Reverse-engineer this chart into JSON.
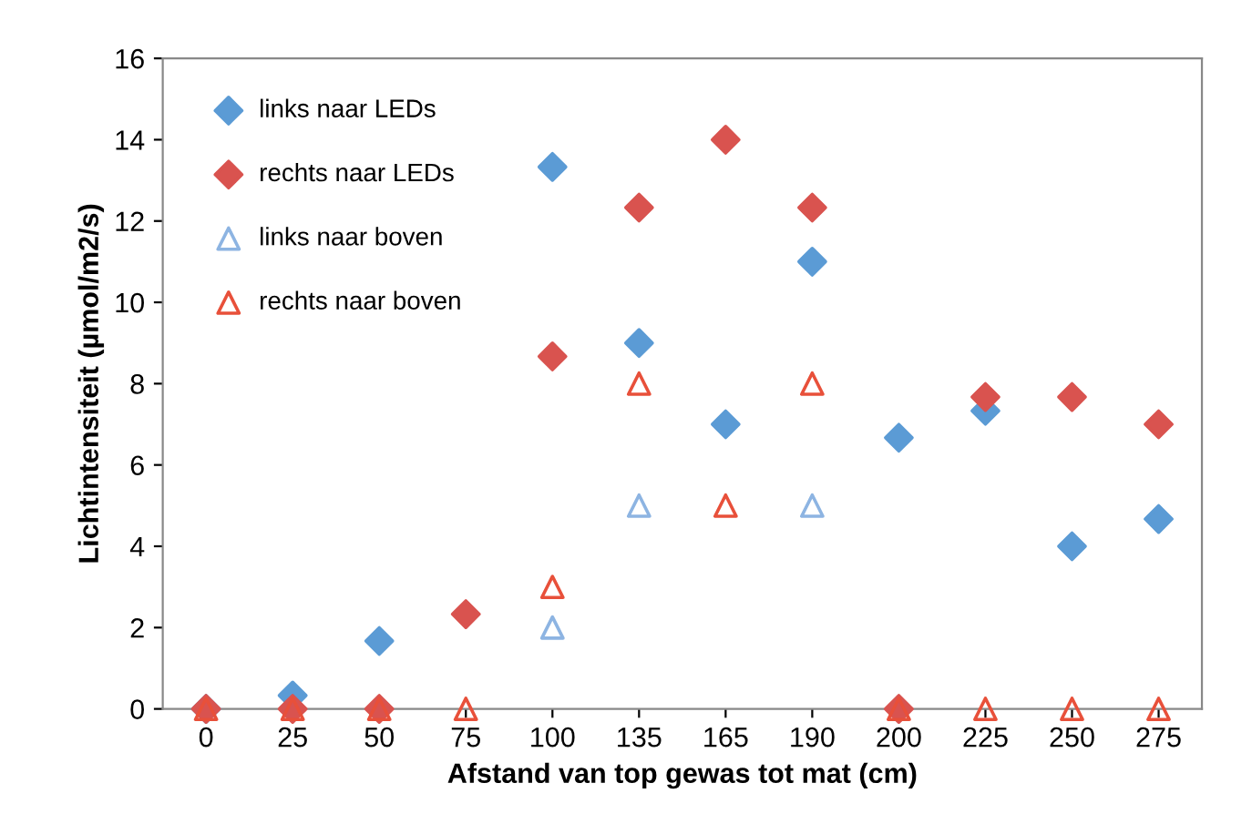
{
  "chart_data": {
    "type": "scatter",
    "xlabel": "Afstand van top gewas tot mat (cm)",
    "ylabel": "Lichtintensiteit (µmol/m2/s)",
    "categories": [
      "0",
      "25",
      "50",
      "75",
      "100",
      "135",
      "165",
      "190",
      "200",
      "225",
      "250",
      "275"
    ],
    "ylim": [
      0,
      16
    ],
    "yticks": [
      0,
      2,
      4,
      6,
      8,
      10,
      12,
      14,
      16
    ],
    "grid": false,
    "legend": "top left",
    "series": [
      {
        "name": "links naar LEDs",
        "color": "#5b9bd5",
        "marker": "diamond",
        "values": [
          0,
          0.33,
          1.67,
          null,
          13.33,
          9,
          7,
          11,
          6.67,
          7.33,
          4,
          4.67
        ]
      },
      {
        "name": "rechts naar LEDs",
        "color": "#d9534f",
        "marker": "diamond",
        "values": [
          0,
          0,
          0,
          2.33,
          8.67,
          12.33,
          14,
          12.33,
          0,
          7.67,
          7.67,
          7
        ]
      },
      {
        "name": "links naar boven",
        "color": "#8db4e2",
        "marker": "triangle",
        "values": [
          null,
          null,
          null,
          null,
          2,
          5,
          null,
          5,
          null,
          null,
          null,
          null
        ]
      },
      {
        "name": "rechts naar boven",
        "color": "#e8503a",
        "marker": "triangle",
        "values": [
          0,
          0,
          0,
          0,
          3,
          8,
          5,
          8,
          0,
          0,
          0,
          0
        ]
      }
    ]
  }
}
